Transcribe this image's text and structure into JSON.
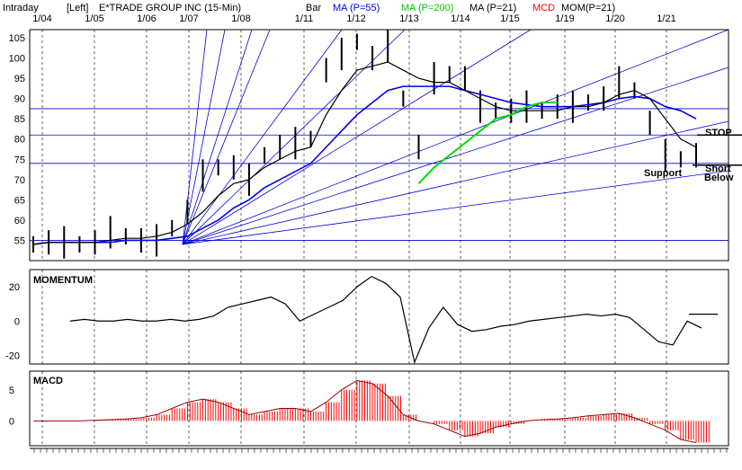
{
  "header": {
    "period": "Intraday",
    "axis_side": "[Left]",
    "symbol_title": "E*TRADE GROUP INC  (15-Min)",
    "indicators": [
      {
        "label": "Bar",
        "color": "#000000"
      },
      {
        "label": "MA (P=55)",
        "color": "#0000ff"
      },
      {
        "label": "MA (P=200)",
        "color": "#00cc00"
      },
      {
        "label": "MA (P=21)",
        "color": "#000000"
      },
      {
        "label": "MCD",
        "color": "#ff0000"
      },
      {
        "label": "MOM(P=21)",
        "color": "#000000"
      }
    ]
  },
  "dates": [
    "1/04",
    "1/05",
    "1/06",
    "1/07",
    "1/08",
    "1/11",
    "1/12",
    "1/13",
    "1/14",
    "1/15",
    "1/19",
    "1/20",
    "1/21"
  ],
  "annotations": {
    "stop": "STOP",
    "support": "Support",
    "short": "Short",
    "below": "Below"
  },
  "panels": {
    "momentum": "MOMENTUM",
    "macd": "MACD"
  },
  "chart_data": [
    {
      "type": "bar",
      "title": "E*TRADE GROUP INC  (15-Min)",
      "ylim": [
        50,
        107
      ],
      "yticks": [
        55,
        60,
        65,
        70,
        75,
        80,
        85,
        90,
        95,
        100,
        105
      ],
      "x": [
        "1/04",
        "1/05",
        "1/06",
        "1/07",
        "1/08",
        "1/11",
        "1/12",
        "1/13",
        "1/14",
        "1/15",
        "1/19",
        "1/20",
        "1/21"
      ],
      "price_close": [
        54,
        54.5,
        54.5,
        54,
        54.5,
        57,
        56,
        55,
        55,
        58,
        62,
        71,
        73,
        73,
        70,
        76,
        78,
        79,
        80,
        97,
        101,
        104,
        100,
        103,
        90,
        78,
        95,
        96,
        95,
        88,
        87,
        87,
        88,
        87,
        88,
        88,
        89,
        90,
        94,
        92,
        84,
        76,
        75,
        76
      ],
      "ma21": [
        54,
        54.5,
        54.5,
        54.5,
        54.5,
        55,
        55.5,
        55.5,
        56,
        57,
        59,
        62,
        66,
        69,
        70,
        73,
        75,
        77,
        78,
        86,
        92,
        97,
        98,
        99,
        97,
        95,
        94,
        94,
        92,
        90,
        88,
        87,
        87,
        87,
        87,
        88,
        88,
        89,
        91,
        92,
        90,
        85,
        80,
        78
      ],
      "ma55": [
        54,
        54.5,
        54.5,
        54.5,
        54.5,
        54.5,
        55,
        55,
        55,
        55.5,
        56,
        58,
        60,
        63,
        65,
        68,
        70,
        72,
        74,
        78,
        82,
        86,
        89,
        92,
        93,
        93,
        93,
        93,
        92,
        91,
        90,
        89,
        88.5,
        88,
        88,
        88,
        88.5,
        89,
        90,
        90.5,
        90,
        88,
        87,
        85
      ],
      "ma200": [
        69,
        73,
        76,
        79,
        82,
        85,
        86,
        88,
        89,
        89
      ],
      "ma200_start": "1/13",
      "support_level": 74,
      "stop_level": 81
    },
    {
      "type": "line",
      "title": "MOMENTUM",
      "ylim": [
        -25,
        30
      ],
      "yticks": [
        20,
        0,
        -20
      ],
      "values": [
        0,
        1,
        0,
        0,
        1,
        0,
        0,
        1,
        0,
        1,
        3,
        8,
        10,
        12,
        14,
        10,
        0,
        4,
        8,
        12,
        20,
        26,
        22,
        14,
        -24,
        -4,
        8,
        -2,
        -6,
        -5,
        -3,
        -2,
        0,
        1,
        2,
        3,
        4,
        3,
        4,
        2,
        -5,
        -12,
        -14,
        0,
        -4
      ]
    },
    {
      "type": "bar",
      "title": "MACD",
      "ylim": [
        -4,
        8
      ],
      "yticks": [
        5,
        0
      ],
      "values": [
        0,
        0,
        0,
        0,
        0.1,
        0.2,
        0.3,
        0.5,
        1,
        2,
        3,
        3.5,
        3,
        2,
        1,
        1.5,
        2,
        2,
        1.5,
        3,
        5,
        6.5,
        6,
        4,
        1,
        0,
        -0.5,
        -1.5,
        -2.5,
        -2,
        -1,
        -0.5,
        0,
        0.2,
        0.3,
        0.5,
        0.8,
        1,
        1.2,
        0.5,
        -0.5,
        -1.5,
        -3,
        -3.5
      ]
    }
  ]
}
